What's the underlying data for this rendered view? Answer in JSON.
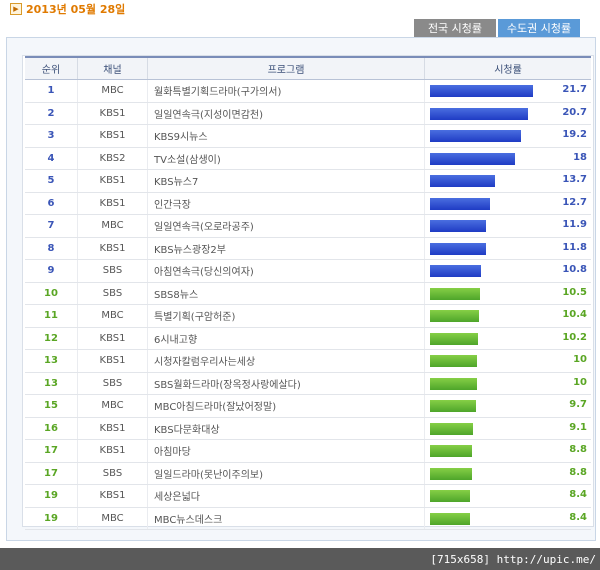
{
  "date_label": "2013년 05월 28일",
  "tabs": [
    {
      "label": "전국 시청률",
      "active": false
    },
    {
      "label": "수도권 시청률",
      "active": true
    }
  ],
  "table": {
    "headers": [
      "순위",
      "채널",
      "프로그램",
      "시청률"
    ],
    "rows": [
      {
        "rank": "1",
        "channel": "MBC",
        "program": "월화특별기획드라마(구가의서)",
        "rating": "21.7",
        "style": "blue"
      },
      {
        "rank": "2",
        "channel": "KBS1",
        "program": "일일연속극(지성이면감천)",
        "rating": "20.7",
        "style": "blue"
      },
      {
        "rank": "3",
        "channel": "KBS1",
        "program": "KBS9시뉴스",
        "rating": "19.2",
        "style": "blue"
      },
      {
        "rank": "4",
        "channel": "KBS2",
        "program": "TV소설(삼생이)",
        "rating": "18",
        "style": "blue"
      },
      {
        "rank": "5",
        "channel": "KBS1",
        "program": "KBS뉴스7",
        "rating": "13.7",
        "style": "blue"
      },
      {
        "rank": "6",
        "channel": "KBS1",
        "program": "인간극장",
        "rating": "12.7",
        "style": "blue"
      },
      {
        "rank": "7",
        "channel": "MBC",
        "program": "일일연속극(오로라공주)",
        "rating": "11.9",
        "style": "blue"
      },
      {
        "rank": "8",
        "channel": "KBS1",
        "program": "KBS뉴스광장2부",
        "rating": "11.8",
        "style": "blue"
      },
      {
        "rank": "9",
        "channel": "SBS",
        "program": "아침연속극(당신의여자)",
        "rating": "10.8",
        "style": "blue"
      },
      {
        "rank": "10",
        "channel": "SBS",
        "program": "SBS8뉴스",
        "rating": "10.5",
        "style": "green"
      },
      {
        "rank": "11",
        "channel": "MBC",
        "program": "특별기획(구암허준)",
        "rating": "10.4",
        "style": "green"
      },
      {
        "rank": "12",
        "channel": "KBS1",
        "program": "6시내고향",
        "rating": "10.2",
        "style": "green"
      },
      {
        "rank": "13",
        "channel": "KBS1",
        "program": "시청자칼럼우리사는세상",
        "rating": "10",
        "style": "green"
      },
      {
        "rank": "13",
        "channel": "SBS",
        "program": "SBS월화드라마(장옥정사랑에살다)",
        "rating": "10",
        "style": "green"
      },
      {
        "rank": "15",
        "channel": "MBC",
        "program": "MBC아침드라마(잘났어정말)",
        "rating": "9.7",
        "style": "green"
      },
      {
        "rank": "16",
        "channel": "KBS1",
        "program": "KBS다문화대상",
        "rating": "9.1",
        "style": "green"
      },
      {
        "rank": "17",
        "channel": "KBS1",
        "program": "아침마당",
        "rating": "8.8",
        "style": "green"
      },
      {
        "rank": "17",
        "channel": "SBS",
        "program": "일일드라마(못난이주의보)",
        "rating": "8.8",
        "style": "green"
      },
      {
        "rank": "19",
        "channel": "KBS1",
        "program": "세상은넓다",
        "rating": "8.4",
        "style": "green"
      },
      {
        "rank": "19",
        "channel": "MBC",
        "program": "MBC뉴스데스크",
        "rating": "8.4",
        "style": "green"
      }
    ]
  },
  "watermark": "[715x658] http://upic.me/"
}
